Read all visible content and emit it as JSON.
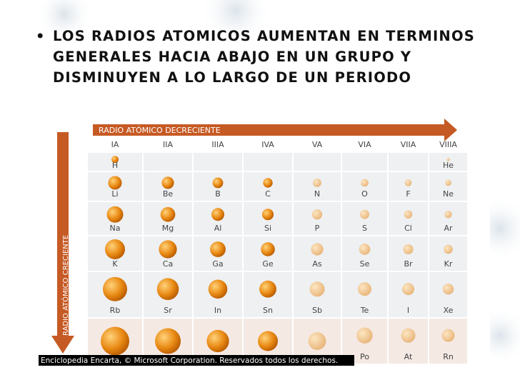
{
  "bullet": "LOS RADIOS ATOMICOS AUMENTAN EN TERMINOS GENERALES HACIA ABAJO EN UN GRUPO Y DISMINUYEN A LO LARGO DE UN PERIODO",
  "figure": {
    "arrow_horizontal": "RADIO ATÓMICO DECRECIENTE",
    "arrow_vertical": "RADIO ATÓMICO CRECIENTE",
    "groups": [
      "IA",
      "IIA",
      "IIIA",
      "IVA",
      "VA",
      "VIA",
      "VIIA",
      "VIIIA"
    ],
    "rows": [
      [
        "H",
        null,
        null,
        null,
        null,
        null,
        null,
        "He"
      ],
      [
        "Li",
        "Be",
        "B",
        "C",
        "N",
        "O",
        "F",
        "Ne"
      ],
      [
        "Na",
        "Mg",
        "Al",
        "Si",
        "P",
        "S",
        "Cl",
        "Ar"
      ],
      [
        "K",
        "Ca",
        "Ga",
        "Ge",
        "As",
        "Se",
        "Br",
        "Kr"
      ],
      [
        "Rb",
        "Sr",
        "In",
        "Sn",
        "Sb",
        "Te",
        "I",
        "Xe"
      ],
      [
        null,
        null,
        null,
        null,
        null,
        "Po",
        "At",
        "Rn"
      ]
    ],
    "caption": "Enciclopedia Encarta, © Microsoft Corporation. Reservados todos los derechos."
  }
}
